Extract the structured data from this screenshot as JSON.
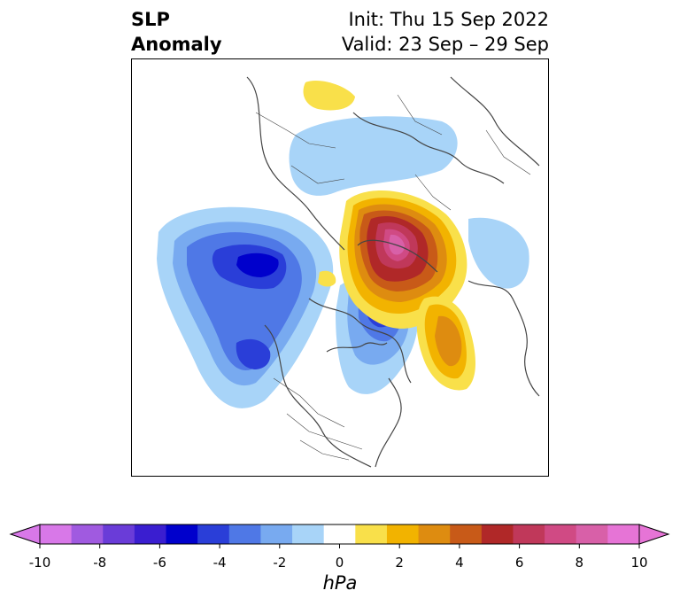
{
  "title": {
    "left_line1": "SLP",
    "left_line2": "Anomaly",
    "right_line1": "Init: Thu 15 Sep 2022",
    "right_line2": "Valid: 23 Sep – 29 Sep"
  },
  "colorbar": {
    "units": "hPa",
    "ticks": [
      "-10",
      "-8",
      "-6",
      "-4",
      "-2",
      "0",
      "2",
      "4",
      "6",
      "8",
      "10"
    ],
    "colors": [
      "#d878e8",
      "#a05ae0",
      "#6a3cd8",
      "#3a1ed0",
      "#0000cc",
      "#2a3ed8",
      "#4f78e6",
      "#78aaf0",
      "#a8d4f8",
      "#ffffff",
      "#f9e04a",
      "#f2b300",
      "#de8c10",
      "#c85a18",
      "#b02828",
      "#c0385a",
      "#d04a84",
      "#d860a8",
      "#e674d6"
    ],
    "min_color": "#d878e8",
    "max_color": "#e674d6"
  }
}
